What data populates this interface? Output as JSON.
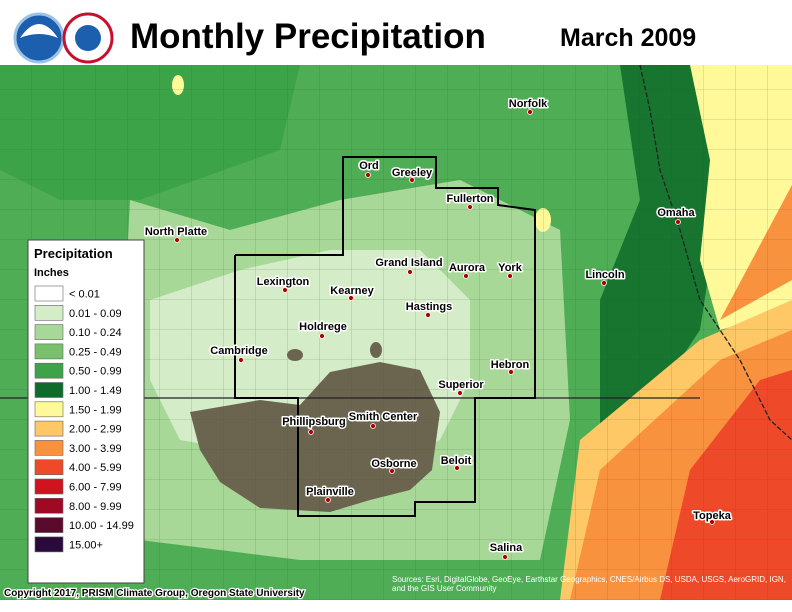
{
  "header": {
    "title": "Monthly Precipitation",
    "period": "March 2009"
  },
  "legend": {
    "title": "Precipitation",
    "units": "Inches",
    "items": [
      {
        "label": "< 0.01",
        "color": "#ffffff"
      },
      {
        "label": "0.01 - 0.09",
        "color": "#d4ecc8"
      },
      {
        "label": "0.10 - 0.24",
        "color": "#a8d898"
      },
      {
        "label": "0.25 - 0.49",
        "color": "#78c06c"
      },
      {
        "label": "0.50 - 0.99",
        "color": "#3da349"
      },
      {
        "label": "1.00 - 1.49",
        "color": "#0f6b2a"
      },
      {
        "label": "1.50 - 1.99",
        "color": "#fff99a"
      },
      {
        "label": "2.00 - 2.99",
        "color": "#fdc865"
      },
      {
        "label": "3.00 - 3.99",
        "color": "#f8923e"
      },
      {
        "label": "4.00 - 5.99",
        "color": "#ee4a2a"
      },
      {
        "label": "6.00 - 7.99",
        "color": "#d0141e"
      },
      {
        "label": "8.00 - 9.99",
        "color": "#9e0a24"
      },
      {
        "label": "10.00 - 14.99",
        "color": "#5a0a2a"
      },
      {
        "label": "15.00+",
        "color": "#2a0a3a"
      }
    ]
  },
  "cities": [
    "Norfolk",
    "Ord",
    "Greeley",
    "Fullerton",
    "North Platte",
    "Omaha",
    "Grand Island",
    "Aurora",
    "York",
    "Lexington",
    "Kearney",
    "Lincoln",
    "Hastings",
    "Holdrege",
    "Cambridge",
    "Hebron",
    "Superior",
    "Phillipsburg",
    "Smith Center",
    "Beloit",
    "Osborne",
    "Plainville",
    "Topeka",
    "Salina"
  ],
  "credits": {
    "copyright": "Copyright 2017, PRISM Climate Group, Oregon State University",
    "sources": "Sources: Esri, DigitalGlobe, GeoEye, Earthstar Geographics, CNES/Airbus DS, USDA, USGS, AeroGRID, IGN, and the GIS User Community"
  }
}
